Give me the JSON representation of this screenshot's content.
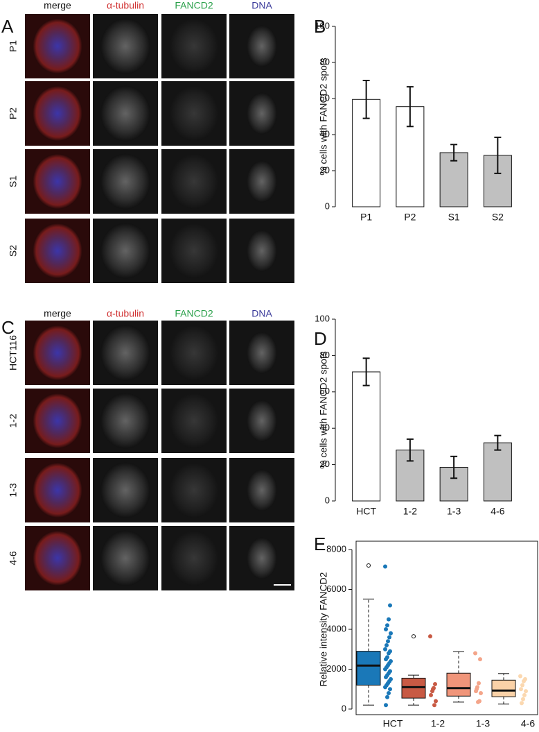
{
  "panel_labels": [
    "A",
    "B",
    "C",
    "D",
    "E"
  ],
  "figure_a": {
    "columns": [
      "merge",
      "α-tubulin",
      "FANCD2",
      "DNA"
    ],
    "rows": [
      "P1",
      "P2",
      "S1",
      "S2"
    ]
  },
  "figure_c": {
    "columns": [
      "merge",
      "α-tubulin",
      "FANCD2",
      "DNA"
    ],
    "rows": [
      "HCT116",
      "1-2",
      "1-3",
      "4-6"
    ]
  },
  "chart_data": [
    {
      "type": "bar",
      "ylabel": "% cells with FANCD2 spots",
      "categories": [
        "P1",
        "P2",
        "S1",
        "S2"
      ],
      "values": [
        59.5,
        55.5,
        30,
        28.5
      ],
      "errors": [
        10.5,
        11,
        4.5,
        10
      ],
      "colors": [
        "#ffffff",
        "#ffffff",
        "#c0c0c0",
        "#c0c0c0"
      ],
      "ylim": [
        0,
        100
      ],
      "yticks": [
        0,
        20,
        40,
        60,
        80,
        100
      ]
    },
    {
      "type": "bar",
      "ylabel": "% cells with FANCD2 spots",
      "categories": [
        "HCT",
        "1-2",
        "1-3",
        "4-6"
      ],
      "values": [
        71,
        28,
        18.5,
        32
      ],
      "errors": [
        7.5,
        6,
        6,
        4
      ],
      "colors": [
        "#ffffff",
        "#c0c0c0",
        "#c0c0c0",
        "#c0c0c0"
      ],
      "ylim": [
        0,
        100
      ],
      "yticks": [
        0,
        20,
        40,
        60,
        80,
        100
      ]
    },
    {
      "type": "box",
      "ylabel": "Relative intensity FANCD2",
      "categories": [
        "HCT",
        "1-2",
        "1-3",
        "4-6"
      ],
      "colors": [
        "#1a78b8",
        "#c85a44",
        "#f0957a",
        "#fad2a8"
      ],
      "point_colors": [
        "#1a78b8",
        "#c85a44",
        "#f4a58a",
        "#fbd8b0"
      ],
      "boxes": [
        {
          "whisker_low": 200,
          "q1": 1200,
          "median": 2180,
          "q3": 2900,
          "whisker_high": 5520,
          "outliers": [
            7200
          ],
          "points": [
            7150,
            5200,
            4500,
            4200,
            4000,
            3800,
            3600,
            3400,
            3200,
            3000,
            2900,
            2800,
            2600,
            2500,
            2400,
            2300,
            2200,
            2100,
            2000,
            1900,
            1800,
            1700,
            1600,
            1500,
            1400,
            1300,
            1200,
            1100,
            1000,
            800,
            600,
            200
          ]
        },
        {
          "whisker_low": 200,
          "q1": 550,
          "median": 1100,
          "q3": 1550,
          "whisker_high": 1700,
          "outliers": [
            3650
          ],
          "points": [
            3650,
            1250,
            1050,
            900,
            700,
            400,
            200,
            1000
          ]
        },
        {
          "whisker_low": 350,
          "q1": 650,
          "median": 1050,
          "q3": 1800,
          "whisker_high": 2880,
          "outliers": [],
          "points": [
            2800,
            2500,
            1300,
            1100,
            900,
            800,
            400,
            350,
            1000
          ]
        },
        {
          "whisker_low": 250,
          "q1": 620,
          "median": 930,
          "q3": 1450,
          "whisker_high": 1780,
          "outliers": [],
          "points": [
            1650,
            1500,
            1400,
            1200,
            1000,
            900,
            700,
            500,
            300
          ]
        }
      ],
      "ylim": [
        -280,
        8420
      ],
      "yticks": [
        0,
        2000,
        4000,
        6000,
        8000
      ]
    }
  ]
}
